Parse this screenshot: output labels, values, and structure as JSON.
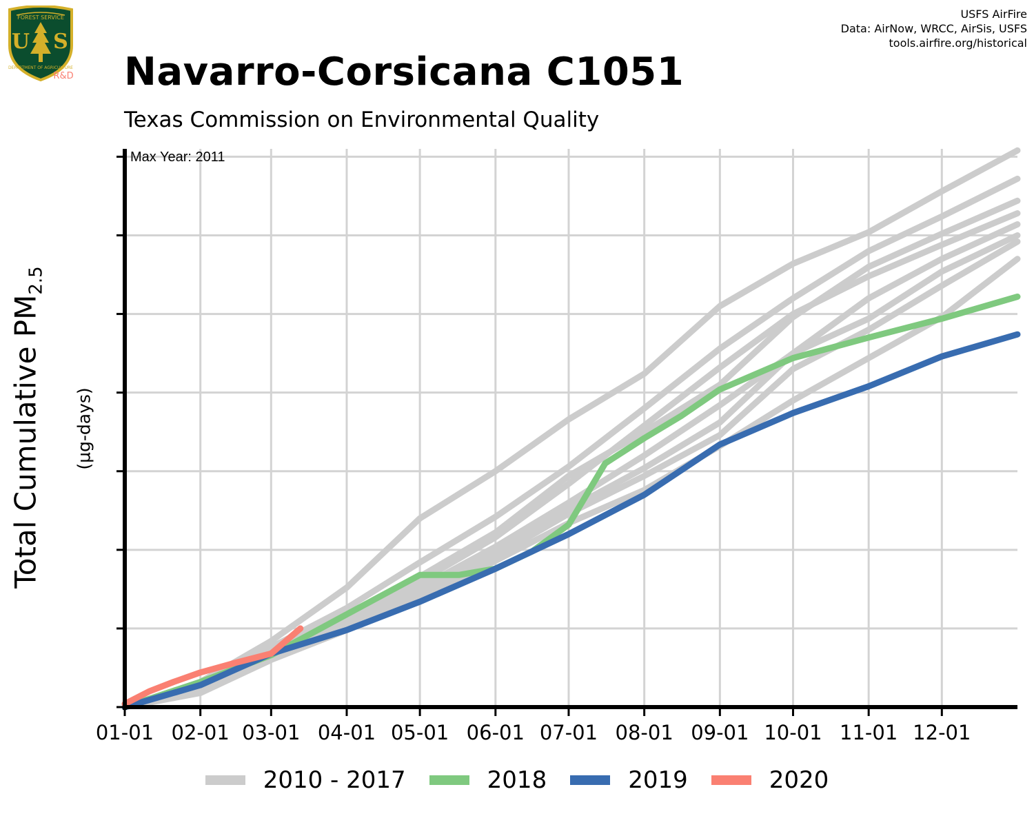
{
  "header": {
    "title": "Navarro-Corsicana C1051",
    "subtitle": "Texas Commission on Environmental Quality",
    "credits": [
      "USFS AirFire",
      "Data: AirNow, WRCC, AirSis, USFS",
      "tools.airfire.org/historical"
    ],
    "logo_rd": "R&D"
  },
  "chart_data": {
    "type": "line",
    "ylabel": "Total Cumulative PM",
    "ylabel_sub": "2.5",
    "ylabel_units": "(µg-days)",
    "annotation": "Max Year: 2011",
    "x_tick_labels": [
      "01-01",
      "02-01",
      "03-01",
      "04-01",
      "05-01",
      "06-01",
      "07-01",
      "08-01",
      "09-01",
      "10-01",
      "11-01",
      "12-01"
    ],
    "x_tick_days": [
      0,
      31,
      60,
      91,
      121,
      152,
      182,
      213,
      244,
      274,
      305,
      335
    ],
    "xlim": [
      0,
      366
    ],
    "ylim": [
      0,
      3550
    ],
    "y_gridlines": [
      500,
      1000,
      1500,
      2000,
      2500,
      3000,
      3500
    ],
    "y_tick_labels_shown": false,
    "grid": true,
    "legend": {
      "position": "bottom",
      "entries": [
        "2010 - 2017",
        "2018",
        "2019",
        "2020"
      ]
    },
    "colors": {
      "gray": "#cccccc",
      "2018": "#7fc97f",
      "2019": "#386cb0",
      "2020": "#fa8072",
      "grid": "#d3d3d3"
    },
    "series": [
      {
        "group": "2010 - 2017",
        "x": [
          0,
          31,
          60,
          91,
          121,
          152,
          182,
          213,
          244,
          274,
          305,
          335,
          366
        ],
        "y": [
          0,
          160,
          420,
          760,
          1200,
          1500,
          1830,
          2120,
          2550,
          2820,
          3020,
          3280,
          3540
        ]
      },
      {
        "group": "2010 - 2017",
        "x": [
          0,
          31,
          60,
          91,
          121,
          152,
          182,
          213,
          244,
          274,
          305,
          335,
          366
        ],
        "y": [
          0,
          150,
          380,
          630,
          920,
          1210,
          1530,
          1900,
          2280,
          2600,
          2900,
          3120,
          3360
        ]
      },
      {
        "group": "2010 - 2017",
        "x": [
          0,
          31,
          60,
          91,
          121,
          152,
          182,
          213,
          244,
          274,
          305,
          335,
          366
        ],
        "y": [
          0,
          140,
          370,
          590,
          830,
          1110,
          1470,
          1750,
          2050,
          2480,
          2800,
          3010,
          3220
        ]
      },
      {
        "group": "2010 - 2017",
        "x": [
          0,
          31,
          60,
          91,
          121,
          152,
          182,
          213,
          244,
          274,
          305,
          335,
          366
        ],
        "y": [
          0,
          130,
          360,
          570,
          800,
          1080,
          1420,
          1790,
          2160,
          2500,
          2740,
          2940,
          3140
        ]
      },
      {
        "group": "2010 - 2017",
        "x": [
          0,
          31,
          60,
          91,
          121,
          152,
          182,
          213,
          244,
          274,
          305,
          335,
          366
        ],
        "y": [
          0,
          120,
          340,
          540,
          760,
          1020,
          1300,
          1600,
          1920,
          2250,
          2600,
          2850,
          3070
        ]
      },
      {
        "group": "2010 - 2017",
        "x": [
          0,
          31,
          60,
          91,
          121,
          152,
          182,
          213,
          244,
          274,
          305,
          335,
          366
        ],
        "y": [
          0,
          110,
          330,
          520,
          740,
          990,
          1260,
          1520,
          1810,
          2250,
          2470,
          2770,
          3000
        ]
      },
      {
        "group": "2010 - 2017",
        "x": [
          0,
          31,
          60,
          91,
          121,
          152,
          182,
          213,
          244,
          274,
          305,
          335,
          366
        ],
        "y": [
          0,
          100,
          320,
          510,
          720,
          960,
          1230,
          1470,
          1730,
          2150,
          2400,
          2680,
          2960
        ]
      },
      {
        "group": "2010 - 2017",
        "x": [
          0,
          31,
          60,
          91,
          121,
          152,
          182,
          213,
          244,
          274,
          305,
          335,
          366
        ],
        "y": [
          0,
          90,
          300,
          490,
          700,
          930,
          1170,
          1380,
          1660,
          1950,
          2220,
          2480,
          2850
        ]
      },
      {
        "name": "2018",
        "x": [
          0,
          31,
          60,
          91,
          121,
          137,
          152,
          167,
          182,
          197,
          213,
          228,
          244,
          274,
          305,
          335,
          366
        ],
        "y": [
          0,
          160,
          330,
          590,
          840,
          840,
          880,
          990,
          1160,
          1550,
          1710,
          1850,
          2020,
          2220,
          2350,
          2470,
          2610
        ]
      },
      {
        "name": "2019",
        "x": [
          0,
          31,
          60,
          91,
          121,
          152,
          182,
          213,
          244,
          274,
          305,
          335,
          366
        ],
        "y": [
          0,
          140,
          340,
          490,
          670,
          880,
          1100,
          1350,
          1670,
          1870,
          2040,
          2230,
          2370
        ]
      },
      {
        "name": "2020",
        "x": [
          0,
          10,
          20,
          31,
          45,
          60,
          72
        ],
        "y": [
          20,
          100,
          160,
          220,
          280,
          340,
          500
        ]
      }
    ]
  }
}
